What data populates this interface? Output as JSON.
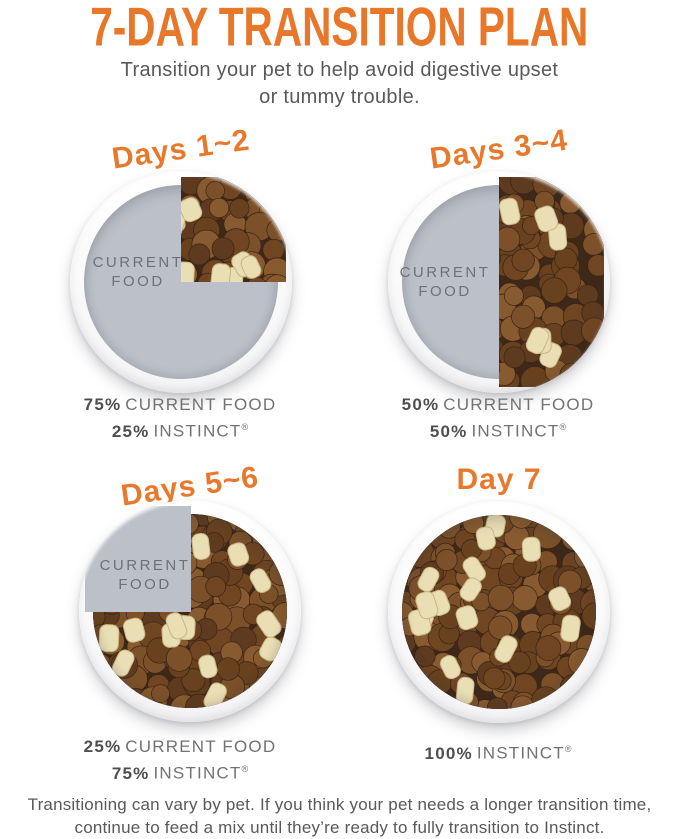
{
  "page": {
    "title": "7-DAY TRANSITION PLAN",
    "subtitle_line1": "Transition your pet to help avoid digestive upset",
    "subtitle_line2": "or tummy trouble.",
    "footer_line1": "Transitioning can vary by pet. If you think your pet needs a longer transition time,",
    "footer_line2": "continue to feed a mix until they’re ready to fully transition to Instinct."
  },
  "colors": {
    "accent_orange": "#E8772A",
    "text_gray": "#58595B",
    "bowl_gray": "#BCC1C9",
    "kibble_gap": "#3E2818",
    "kibble_browns": [
      "#6F4522",
      "#7C512A",
      "#5E3B1F",
      "#875A2F",
      "#68421F"
    ],
    "kibble_stroke": "#3A2414",
    "cream_fill": "#E9DEB4",
    "cream_stroke": "#C9B684"
  },
  "bowls": [
    {
      "label": "Days 1~2",
      "bowl_text": "CURRENT FOOD",
      "current_food_pct": 75,
      "instinct_pct": 25,
      "caption": [
        {
          "pct": "75%",
          "label": "CURRENT FOOD"
        },
        {
          "pct": "25%",
          "label": "INSTINCT",
          "mark": "®"
        }
      ]
    },
    {
      "label": "Days 3~4",
      "bowl_text": "CURRENT FOOD",
      "current_food_pct": 50,
      "instinct_pct": 50,
      "caption": [
        {
          "pct": "50%",
          "label": "CURRENT FOOD"
        },
        {
          "pct": "50%",
          "label": "INSTINCT",
          "mark": "®"
        }
      ]
    },
    {
      "label": "Days 5~6",
      "bowl_text": "CURRENT FOOD",
      "current_food_pct": 25,
      "instinct_pct": 75,
      "caption": [
        {
          "pct": "25%",
          "label": "CURRENT FOOD"
        },
        {
          "pct": "75%",
          "label": "INSTINCT",
          "mark": "®"
        }
      ]
    },
    {
      "label": "Day 7",
      "current_food_pct": 0,
      "instinct_pct": 100,
      "caption": [
        {
          "pct": "100%",
          "label": "INSTINCT",
          "mark": "®"
        }
      ]
    }
  ]
}
